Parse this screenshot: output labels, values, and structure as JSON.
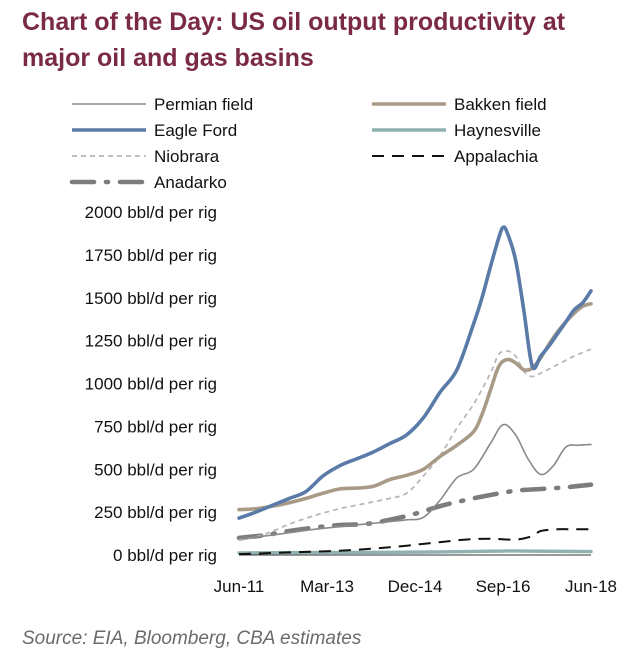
{
  "title": "Chart of the Day: US oil output productivity at major oil and gas basins",
  "source": "Source: EIA, Bloomberg, CBA estimates",
  "chart_data": {
    "type": "line",
    "title": "Chart of the Day: US oil output productivity at major oil and gas basins",
    "xlabel": "",
    "ylabel": "",
    "ylim": [
      0,
      2000
    ],
    "xlim": [
      0,
      84
    ],
    "yticks": [
      {
        "value": 0,
        "label": "0 bbl/d per rig"
      },
      {
        "value": 250,
        "label": "250 bbl/d per rig"
      },
      {
        "value": 500,
        "label": "500 bbl/d per rig"
      },
      {
        "value": 750,
        "label": "750 bbl/d per rig"
      },
      {
        "value": 1000,
        "label": "1000 bbl/d per rig"
      },
      {
        "value": 1250,
        "label": "1250 bbl/d per rig"
      },
      {
        "value": 1500,
        "label": "1500 bbl/d per rig"
      },
      {
        "value": 1750,
        "label": "1750 bbl/d per rig"
      },
      {
        "value": 2000,
        "label": "2000 bbl/d per rig"
      }
    ],
    "xticks": [
      {
        "value": 0,
        "label": "Jun-11"
      },
      {
        "value": 21,
        "label": "Mar-13"
      },
      {
        "value": 42,
        "label": "Dec-14"
      },
      {
        "value": 63,
        "label": "Sep-16"
      },
      {
        "value": 84,
        "label": "Jun-18"
      }
    ],
    "grid": false,
    "legend": "top",
    "series": [
      {
        "name": "Permian field",
        "color": "#8a8a8a",
        "width": 1.6,
        "dash": "",
        "x": [
          0,
          6,
          12,
          18,
          24,
          30,
          36,
          40,
          44,
          48,
          52,
          56,
          60,
          63,
          66,
          69,
          72,
          75,
          78,
          81,
          84
        ],
        "y": [
          95,
          110,
          130,
          150,
          165,
          180,
          195,
          205,
          220,
          320,
          450,
          500,
          650,
          760,
          700,
          560,
          470,
          520,
          630,
          640,
          645
        ]
      },
      {
        "name": "Bakken field",
        "color": "#a89a86",
        "width": 3.6,
        "dash": "",
        "x": [
          0,
          4,
          8,
          12,
          16,
          20,
          24,
          28,
          32,
          36,
          40,
          44,
          48,
          52,
          56,
          58,
          60,
          62,
          64,
          66,
          68,
          70,
          72,
          74,
          76,
          78,
          80,
          82,
          84
        ],
        "y": [
          265,
          270,
          285,
          305,
          330,
          360,
          385,
          390,
          400,
          440,
          465,
          500,
          575,
          640,
          720,
          820,
          960,
          1100,
          1140,
          1120,
          1080,
          1090,
          1150,
          1230,
          1300,
          1360,
          1410,
          1450,
          1465
        ]
      },
      {
        "name": "Eagle Ford",
        "color": "#5a7aa8",
        "width": 3.6,
        "dash": "",
        "x": [
          0,
          4,
          8,
          12,
          16,
          20,
          24,
          28,
          32,
          36,
          40,
          44,
          48,
          52,
          56,
          58,
          60,
          62,
          63,
          64,
          66,
          68,
          70,
          72,
          74,
          76,
          78,
          80,
          82,
          84
        ],
        "y": [
          215,
          250,
          290,
          330,
          370,
          460,
          520,
          560,
          600,
          650,
          700,
          800,
          950,
          1080,
          1350,
          1500,
          1680,
          1850,
          1910,
          1880,
          1720,
          1420,
          1100,
          1160,
          1220,
          1290,
          1360,
          1430,
          1470,
          1540
        ]
      },
      {
        "name": "Haynesville",
        "color": "#8fb2b0",
        "width": 3.4,
        "dash": "",
        "x": [
          0,
          12,
          24,
          36,
          48,
          60,
          66,
          72,
          84
        ],
        "y": [
          12,
          14,
          15,
          16,
          18,
          22,
          24,
          22,
          20
        ]
      },
      {
        "name": "Niobrara",
        "color": "#b8b8b8",
        "width": 1.8,
        "dash": "5,4",
        "x": [
          0,
          6,
          12,
          18,
          24,
          30,
          36,
          40,
          44,
          48,
          52,
          56,
          60,
          62,
          64,
          66,
          68,
          70,
          72,
          76,
          80,
          84
        ],
        "y": [
          85,
          120,
          180,
          230,
          270,
          300,
          330,
          360,
          460,
          580,
          740,
          880,
          1060,
          1170,
          1190,
          1160,
          1070,
          1040,
          1060,
          1110,
          1160,
          1200
        ]
      },
      {
        "name": "Appalachia",
        "color": "#111111",
        "width": 2.0,
        "dash": "12,8",
        "x": [
          0,
          12,
          24,
          36,
          48,
          54,
          60,
          66,
          70,
          72,
          76,
          80,
          84
        ],
        "y": [
          5,
          15,
          25,
          45,
          75,
          90,
          95,
          90,
          110,
          140,
          150,
          150,
          150
        ]
      },
      {
        "name": "Anadarko",
        "color": "#7c7c7c",
        "width": 4.6,
        "dash": "22,12,2,12",
        "x": [
          0,
          6,
          12,
          18,
          24,
          30,
          36,
          42,
          48,
          54,
          60,
          66,
          72,
          78,
          84
        ],
        "y": [
          100,
          115,
          140,
          160,
          175,
          180,
          205,
          240,
          285,
          320,
          350,
          375,
          385,
          395,
          410
        ]
      }
    ]
  }
}
